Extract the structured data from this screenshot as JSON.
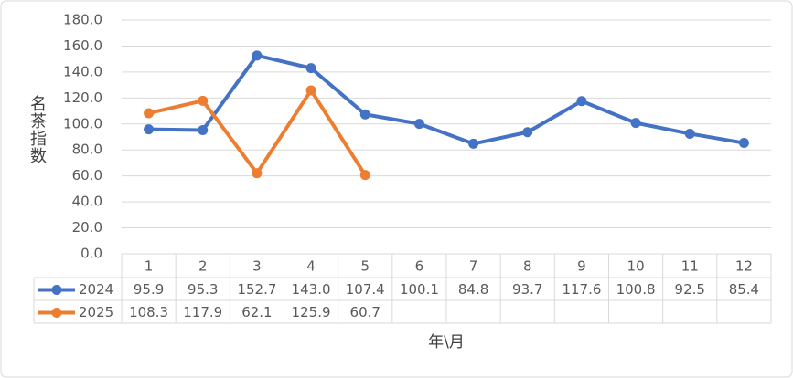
{
  "chart_data": {
    "type": "line",
    "y_axis_label": "名茶指数",
    "x_axis_label": "年\\月",
    "categories": [
      "1",
      "2",
      "3",
      "4",
      "5",
      "6",
      "7",
      "8",
      "9",
      "10",
      "11",
      "12"
    ],
    "series": [
      {
        "name": "2024",
        "color": "#4472c4",
        "values": [
          95.9,
          95.3,
          152.7,
          143.0,
          107.4,
          100.1,
          84.8,
          93.7,
          117.6,
          100.8,
          92.5,
          85.4
        ],
        "value_labels": [
          "95.9",
          "95.3",
          "152.7",
          "143.0",
          "107.4",
          "100.1",
          "84.8",
          "93.7",
          "117.6",
          "100.8",
          "92.5",
          "85.4"
        ]
      },
      {
        "name": "2025",
        "color": "#ed7d31",
        "values": [
          108.3,
          117.9,
          62.1,
          125.9,
          60.7,
          null,
          null,
          null,
          null,
          null,
          null,
          null
        ],
        "value_labels": [
          "108.3",
          "117.9",
          "62.1",
          "125.9",
          "60.7",
          null,
          null,
          null,
          null,
          null,
          null,
          null
        ]
      }
    ],
    "ylim": [
      0,
      180
    ],
    "yticks": [
      {
        "value": 0,
        "label": "0.0"
      },
      {
        "value": 20,
        "label": "20.0"
      },
      {
        "value": 40,
        "label": "40.0"
      },
      {
        "value": 60,
        "label": "60.0"
      },
      {
        "value": 80,
        "label": "80.0"
      },
      {
        "value": 100,
        "label": "100.0"
      },
      {
        "value": 120,
        "label": "120.0"
      },
      {
        "value": 140,
        "label": "140.0"
      },
      {
        "value": 160,
        "label": "160.0"
      },
      {
        "value": 180,
        "label": "180.0"
      }
    ],
    "grid": true,
    "data_table": true
  }
}
